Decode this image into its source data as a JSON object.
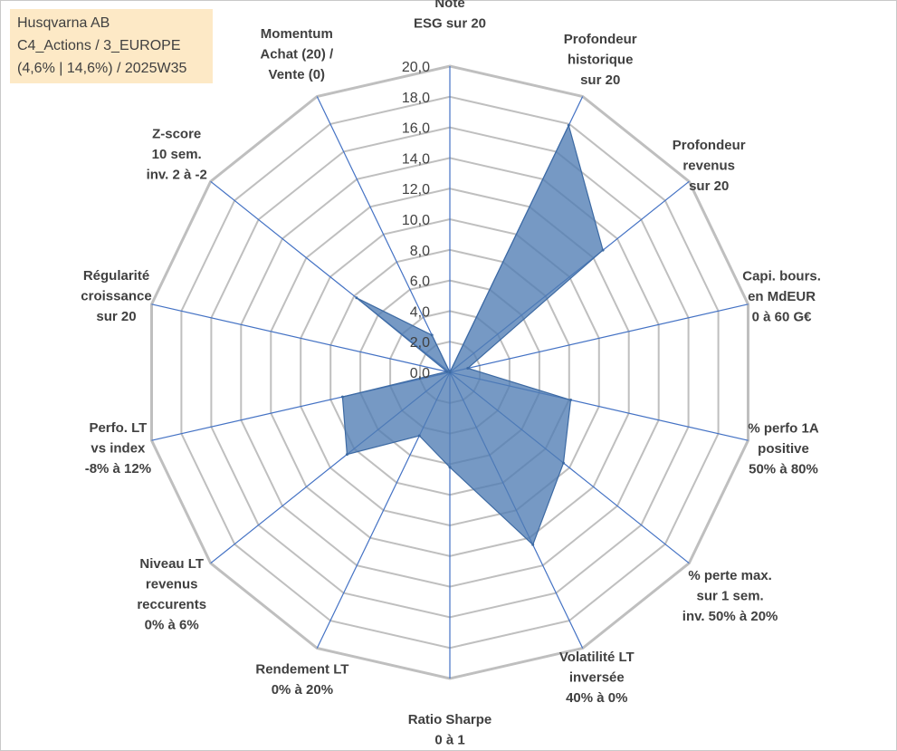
{
  "info": {
    "line1": "Husqvarna AB",
    "line2": "C4_Actions / 3_EUROPE",
    "line3": "(4,6% | 14,6%) / 2025W35"
  },
  "chart_data": {
    "type": "radar",
    "r_range": [
      0,
      20
    ],
    "r_step": 2,
    "tick_labels": [
      "0,0",
      "2,0",
      "4,0",
      "6,0",
      "8,0",
      "10,0",
      "12,0",
      "14,0",
      "16,0",
      "18,0",
      "20,0"
    ],
    "grid": true,
    "categories": [
      [
        "Note",
        "ESG sur 20"
      ],
      [
        "Profondeur",
        "historique",
        "sur 20"
      ],
      [
        "Profondeur",
        "revenus",
        "sur 20"
      ],
      [
        "Capi. bours.",
        "en MdEUR",
        "0 à 60 G€"
      ],
      [
        "% perfo 1A",
        "positive",
        "50% à 80%"
      ],
      [
        "% perte max.",
        "sur 1 sem.",
        "inv. 50% à 20%"
      ],
      [
        "Volatilité LT",
        "inversée",
        "40% à 0%"
      ],
      [
        "Ratio Sharpe",
        "0 à 1"
      ],
      [
        "Rendement LT",
        "0% à 20%"
      ],
      [
        "Niveau LT",
        "revenus",
        "reccurents",
        "0% à 6%"
      ],
      [
        "Perfo. LT",
        "vs index",
        "-8% à 12%"
      ],
      [
        "Régularité",
        "croissance",
        "sur 20"
      ],
      [
        "Z-score",
        "10 sem.",
        "inv. 2 à -2"
      ],
      [
        "Momentum",
        "Achat (20) /",
        "Vente (0)"
      ]
    ],
    "series": [
      {
        "values": [
          0.0,
          17.9,
          12.8,
          1.2,
          8.1,
          9.5,
          12.5,
          6.2,
          4.6,
          8.6,
          7.2,
          0.2,
          7.8,
          2.7
        ],
        "color": "#4f7cb3"
      }
    ],
    "colors": {
      "grid": "#bfbfbf",
      "spokes": "#4472c4",
      "fill": "#4f7cb3",
      "text": "#404040",
      "info_bg": "#fde9c6"
    }
  }
}
